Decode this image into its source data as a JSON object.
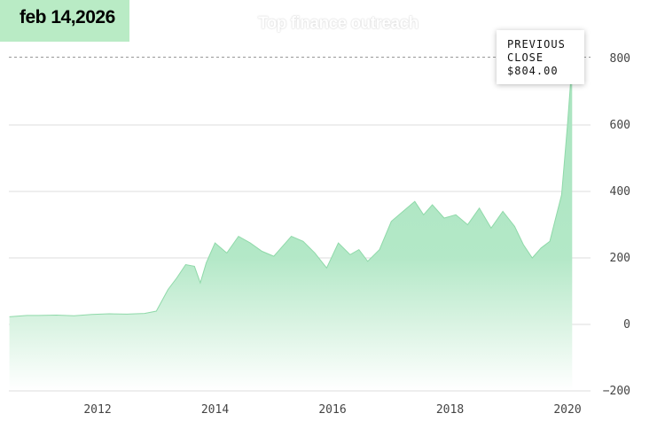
{
  "header": {
    "date_badge": "feb 14,2026",
    "watermark": "Top finance outreach"
  },
  "tooltip": {
    "line1": "PREVIOUS",
    "line2": "CLOSE",
    "value": "$804.00"
  },
  "colors": {
    "area_fill": "#a9e4bf",
    "area_line": "#8fd9a9",
    "badge_bg": "#b9ebc5",
    "grid": "#dddddd",
    "reference_line": "#999999"
  },
  "chart_data": {
    "type": "area",
    "ylim": [
      -200,
      800
    ],
    "yticks": [
      "800",
      "600",
      "400",
      "200",
      "0",
      "−200"
    ],
    "ytick_values": [
      800,
      600,
      400,
      200,
      0,
      -200
    ],
    "xticks": [
      "2012",
      "2014",
      "2016",
      "2018",
      "2020"
    ],
    "xtick_values": [
      2012,
      2014,
      2016,
      2018,
      2020
    ],
    "xlim": [
      2010.5,
      2020.2
    ],
    "reference_line": {
      "label": "PREVIOUS CLOSE",
      "value": 804.0
    },
    "series": [
      {
        "x": [
          2010.5,
          2010.8,
          2011.0,
          2011.3,
          2011.6,
          2011.9,
          2012.2,
          2012.5,
          2012.8,
          2013.0,
          2013.2,
          2013.35,
          2013.5,
          2013.65,
          2013.75,
          2013.85,
          2014.0,
          2014.2,
          2014.4,
          2014.6,
          2014.8,
          2015.0,
          2015.1,
          2015.3,
          2015.5,
          2015.7,
          2015.9,
          2016.1,
          2016.3,
          2016.45,
          2016.6,
          2016.8,
          2017.0,
          2017.2,
          2017.4,
          2017.55,
          2017.7,
          2017.9,
          2018.1,
          2018.3,
          2018.5,
          2018.7,
          2018.9,
          2019.1,
          2019.25,
          2019.4,
          2019.55,
          2019.7,
          2019.8,
          2019.9,
          2020.0,
          2020.05,
          2020.08
        ],
        "y": [
          23,
          27,
          27,
          28,
          26,
          30,
          32,
          31,
          33,
          40,
          105,
          140,
          180,
          175,
          125,
          185,
          245,
          215,
          265,
          245,
          220,
          205,
          225,
          265,
          250,
          215,
          170,
          245,
          210,
          225,
          190,
          225,
          310,
          340,
          370,
          330,
          360,
          320,
          330,
          300,
          350,
          290,
          340,
          295,
          240,
          200,
          230,
          250,
          320,
          390,
          600,
          720,
          804
        ]
      }
    ]
  }
}
